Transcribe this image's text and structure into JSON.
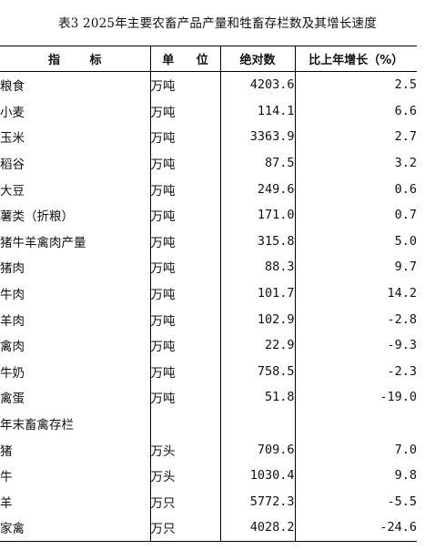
{
  "title": "表3 2025年主要农畜产品产量和牲畜存栏数及其增长速度",
  "table": {
    "headers": [
      "指 标",
      "单 位",
      "绝对数",
      "比上年增长（%）"
    ],
    "rows": [
      {
        "indicator": "粮食",
        "unit": "万吨",
        "value": "4203.6",
        "growth": "2.5"
      },
      {
        "indicator": "小麦",
        "unit": "万吨",
        "value": "114.1",
        "growth": "6.6"
      },
      {
        "indicator": "玉米",
        "unit": "万吨",
        "value": "3363.9",
        "growth": "2.7"
      },
      {
        "indicator": "稻谷",
        "unit": "万吨",
        "value": "87.5",
        "growth": "3.2"
      },
      {
        "indicator": "大豆",
        "unit": "万吨",
        "value": "249.6",
        "growth": "0.6"
      },
      {
        "indicator": "薯类（折粮）",
        "unit": "万吨",
        "value": "171.0",
        "growth": "0.7"
      },
      {
        "indicator": "猪牛羊禽肉产量",
        "unit": "万吨",
        "value": "315.8",
        "growth": "5.0"
      },
      {
        "indicator": "猪肉",
        "unit": "万吨",
        "value": "88.3",
        "growth": "9.7"
      },
      {
        "indicator": "牛肉",
        "unit": "万吨",
        "value": "101.7",
        "growth": "14.2"
      },
      {
        "indicator": "羊肉",
        "unit": "万吨",
        "value": "102.9",
        "growth": "-2.8"
      },
      {
        "indicator": "禽肉",
        "unit": "万吨",
        "value": "22.9",
        "growth": "-9.3"
      },
      {
        "indicator": "牛奶",
        "unit": "万吨",
        "value": "758.5",
        "growth": "-2.3"
      },
      {
        "indicator": "禽蛋",
        "unit": "万吨",
        "value": "51.8",
        "growth": "-19.0"
      },
      {
        "indicator": "年末畜禽存栏",
        "unit": "",
        "value": "",
        "growth": ""
      },
      {
        "indicator": "猪",
        "unit": "万头",
        "value": "709.6",
        "growth": "7.0"
      },
      {
        "indicator": "牛",
        "unit": "万头",
        "value": "1030.4",
        "growth": "9.8"
      },
      {
        "indicator": "羊",
        "unit": "万只",
        "value": "5772.3",
        "growth": "-5.5"
      },
      {
        "indicator": "家禽",
        "unit": "万只",
        "value": "4028.2",
        "growth": "-24.6"
      }
    ]
  }
}
